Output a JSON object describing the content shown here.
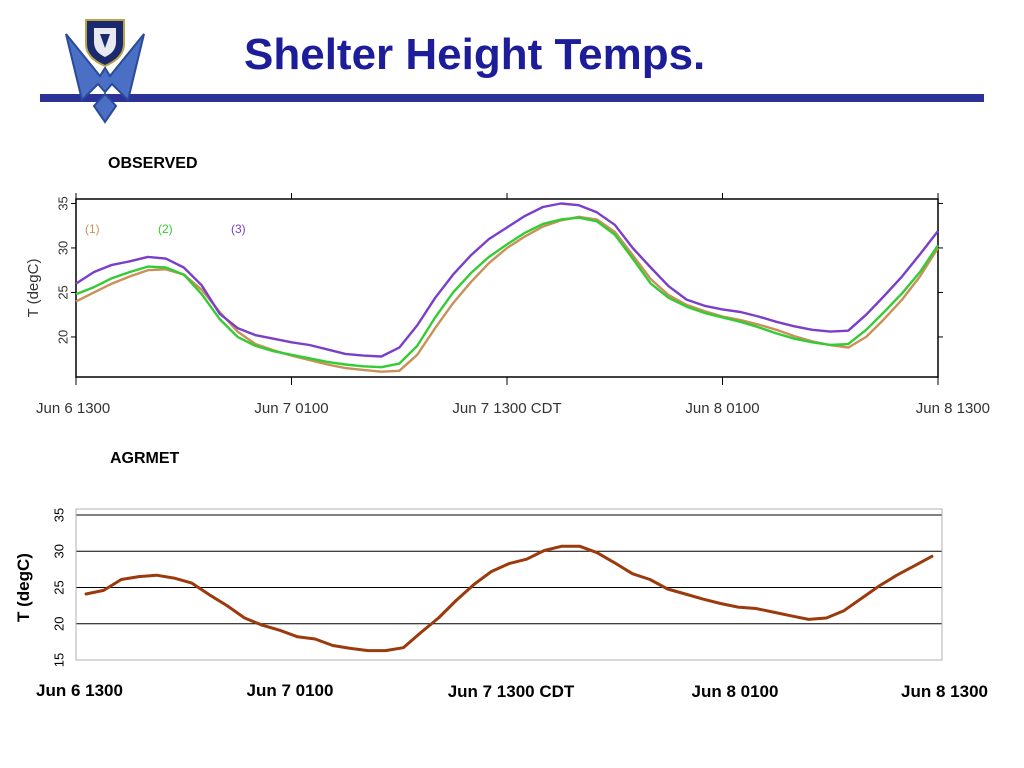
{
  "slide": {
    "title": "Shelter Height Temps.",
    "accent_color": "#1d1d9a",
    "rule_color": "#2b3399",
    "logo_icon": "air-force-wings-shield-icon"
  },
  "chart_data": [
    {
      "id": "observed",
      "type": "line",
      "title": "OBSERVED",
      "xlabel": "",
      "ylabel": "T (degC)",
      "x_tick_labels": [
        "Jun  6 1300",
        "Jun  7 0100",
        "Jun  7 1300 CDT",
        "Jun  8 0100",
        "Jun  8 1300"
      ],
      "x_hours": [
        0,
        12,
        24,
        36,
        48
      ],
      "y_ticks": [
        20,
        25,
        30,
        35
      ],
      "ylim": [
        15.5,
        35.5
      ],
      "xlim": [
        0,
        48
      ],
      "grid": false,
      "legend": "top-left",
      "series": [
        {
          "name": "(1)",
          "color": "#c8915a",
          "x": [
            0,
            1,
            2,
            3,
            4,
            5,
            6,
            7,
            8,
            9,
            10,
            11,
            12,
            13,
            14,
            15,
            16,
            17,
            18,
            19,
            20,
            21,
            22,
            23,
            24,
            25,
            26,
            27,
            28,
            29,
            30,
            31,
            32,
            33,
            34,
            35,
            36,
            37,
            38,
            39,
            40,
            41,
            42,
            43,
            44,
            45,
            46,
            47,
            48
          ],
          "values": [
            24.0,
            25.0,
            26.0,
            26.8,
            27.5,
            27.6,
            27.0,
            25.3,
            22.8,
            20.6,
            19.2,
            18.5,
            17.9,
            17.4,
            16.9,
            16.5,
            16.3,
            16.1,
            16.2,
            18.0,
            21.0,
            23.8,
            26.2,
            28.3,
            30.0,
            31.3,
            32.4,
            33.1,
            33.5,
            33.2,
            31.8,
            29.2,
            26.5,
            24.7,
            23.6,
            22.9,
            22.3,
            21.9,
            21.4,
            20.8,
            20.1,
            19.5,
            19.1,
            18.8,
            20.0,
            22.0,
            24.2,
            26.8,
            30.0
          ]
        },
        {
          "name": "(2)",
          "color": "#33cc33",
          "x": [
            0,
            1,
            2,
            3,
            4,
            5,
            6,
            7,
            8,
            9,
            10,
            11,
            12,
            13,
            14,
            15,
            16,
            17,
            18,
            19,
            20,
            21,
            22,
            23,
            24,
            25,
            26,
            27,
            28,
            29,
            30,
            31,
            32,
            33,
            34,
            35,
            36,
            37,
            38,
            39,
            40,
            41,
            42,
            43,
            44,
            45,
            46,
            47,
            48
          ],
          "values": [
            24.8,
            25.6,
            26.6,
            27.3,
            27.9,
            27.8,
            27.0,
            24.8,
            22.0,
            20.0,
            19.0,
            18.4,
            18.0,
            17.6,
            17.2,
            16.9,
            16.7,
            16.6,
            17.0,
            19.0,
            22.2,
            25.0,
            27.2,
            29.0,
            30.4,
            31.7,
            32.7,
            33.2,
            33.4,
            33.0,
            31.5,
            28.8,
            26.0,
            24.4,
            23.4,
            22.7,
            22.2,
            21.7,
            21.1,
            20.4,
            19.8,
            19.4,
            19.1,
            19.2,
            20.8,
            22.8,
            24.9,
            27.3,
            30.3
          ]
        },
        {
          "name": "(3)",
          "color": "#7a3fc9",
          "x": [
            0,
            1,
            2,
            3,
            4,
            5,
            6,
            7,
            8,
            9,
            10,
            11,
            12,
            13,
            14,
            15,
            16,
            17,
            18,
            19,
            20,
            21,
            22,
            23,
            24,
            25,
            26,
            27,
            28,
            29,
            30,
            31,
            32,
            33,
            34,
            35,
            36,
            37,
            38,
            39,
            40,
            41,
            42,
            43,
            44,
            45,
            46,
            47,
            48
          ],
          "values": [
            26.0,
            27.3,
            28.1,
            28.5,
            29.0,
            28.8,
            27.8,
            25.8,
            22.6,
            21.0,
            20.2,
            19.8,
            19.4,
            19.1,
            18.6,
            18.1,
            17.9,
            17.8,
            18.8,
            21.3,
            24.4,
            27.0,
            29.2,
            31.0,
            32.3,
            33.6,
            34.6,
            35.0,
            34.8,
            34.0,
            32.6,
            30.0,
            27.8,
            25.7,
            24.2,
            23.5,
            23.1,
            22.8,
            22.3,
            21.7,
            21.2,
            20.8,
            20.6,
            20.7,
            22.5,
            24.6,
            26.8,
            29.3,
            31.9
          ]
        }
      ]
    },
    {
      "id": "agrmet",
      "type": "line",
      "title": "AGRMET",
      "xlabel": "",
      "ylabel": "T (degC)",
      "x_tick_labels": [
        "Jun 6 1300",
        "Jun 7 0100",
        "Jun 7 1300 CDT",
        "Jun 8 0100",
        "Jun 8 1300"
      ],
      "x_hours": [
        0,
        12,
        24,
        36,
        48
      ],
      "y_ticks": [
        15,
        20,
        25,
        30,
        35
      ],
      "ylim": [
        15,
        35
      ],
      "xlim": [
        0,
        48
      ],
      "grid": true,
      "legend": "none",
      "series": [
        {
          "color": "#9b3a0c",
          "x": [
            0,
            1,
            2,
            3,
            4,
            5,
            6,
            7,
            8,
            9,
            10,
            11,
            12,
            13,
            14,
            15,
            16,
            17,
            18,
            19,
            20,
            21,
            22,
            23,
            24,
            25,
            26,
            27,
            28,
            29,
            30,
            31,
            32,
            33,
            34,
            35,
            36,
            37,
            38,
            39,
            40,
            41,
            42,
            43,
            44,
            45,
            46,
            47,
            48
          ],
          "values": [
            24.1,
            24.6,
            26.1,
            26.5,
            26.7,
            26.3,
            25.6,
            24.0,
            22.5,
            20.8,
            19.8,
            19.1,
            18.2,
            17.9,
            17.0,
            16.6,
            16.3,
            16.3,
            16.7,
            18.8,
            20.8,
            23.2,
            25.4,
            27.2,
            28.3,
            28.9,
            30.1,
            30.7,
            30.7,
            29.8,
            28.4,
            26.9,
            26.1,
            24.8,
            24.1,
            23.4,
            22.8,
            22.3,
            22.1,
            21.6,
            21.1,
            20.6,
            20.8,
            21.8,
            23.5,
            25.2,
            26.7,
            28.0,
            29.3
          ]
        }
      ]
    }
  ]
}
